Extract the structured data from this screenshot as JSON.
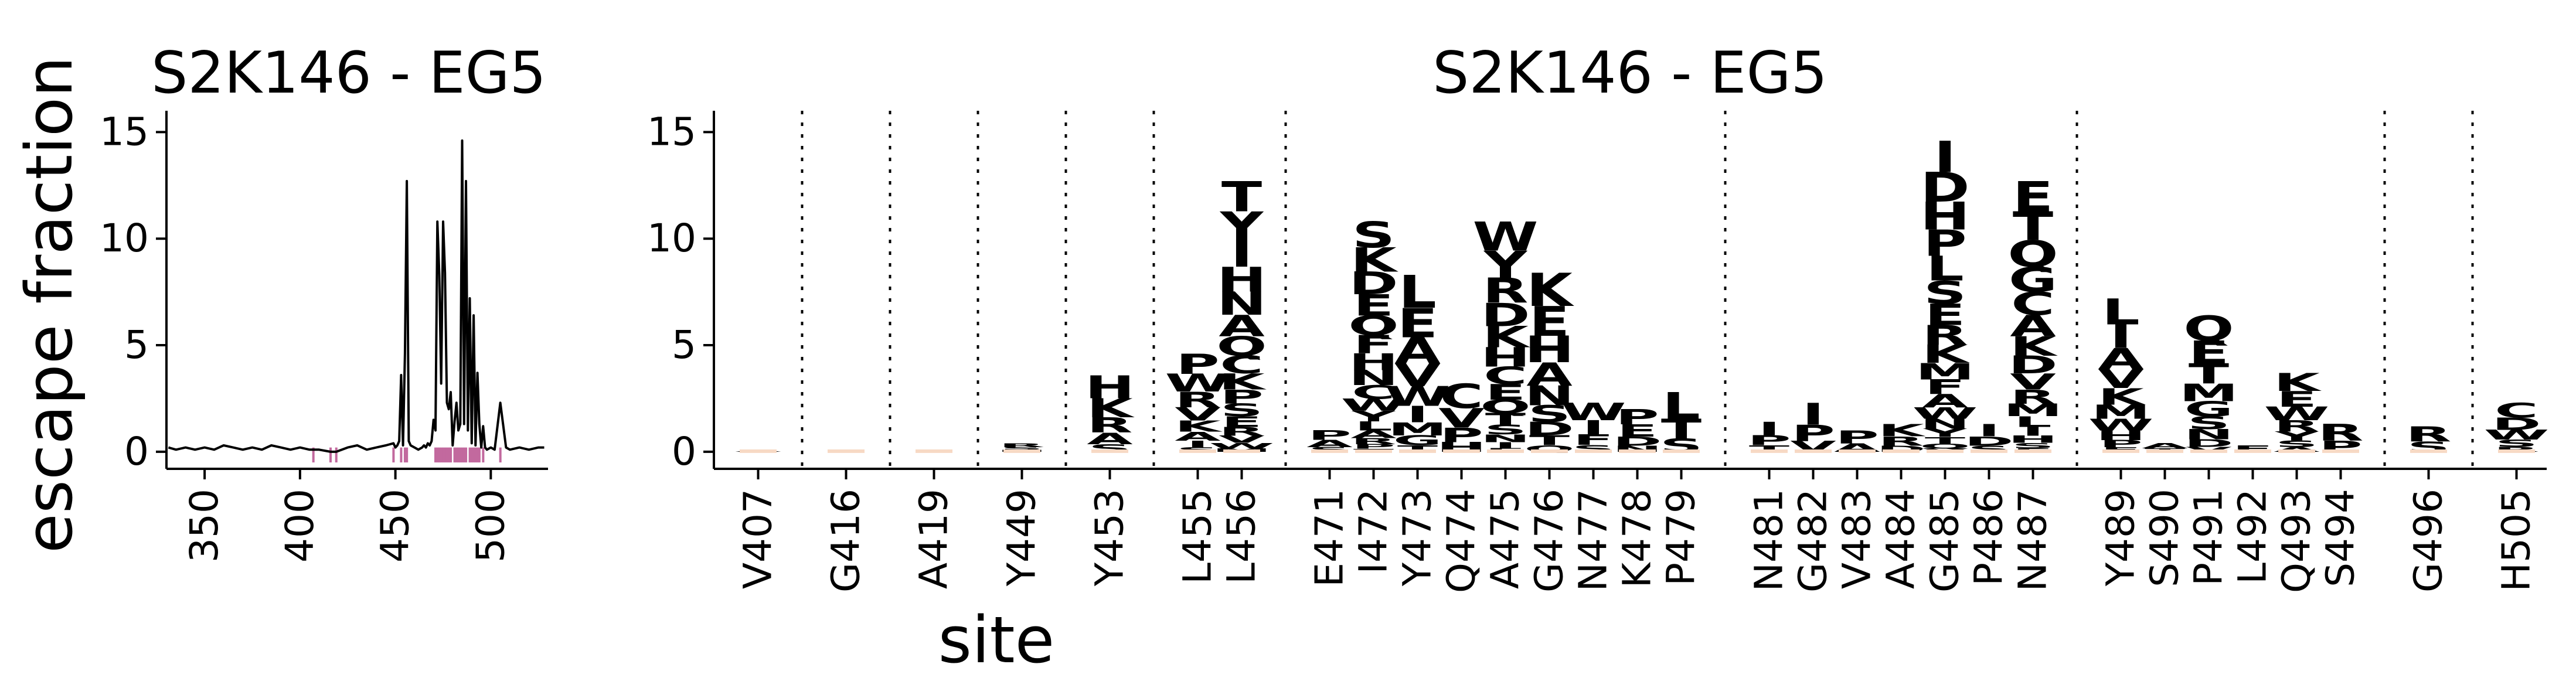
{
  "chart_data": [
    {
      "type": "line",
      "title": "S2K146 - EG5",
      "xlabel": "",
      "ylabel": "escape fraction",
      "xlim": [
        330,
        530
      ],
      "ylim": [
        -0.8,
        16
      ],
      "xticks": [
        350,
        400,
        450,
        500
      ],
      "yticks": [
        0,
        5,
        10,
        15
      ],
      "grid": false,
      "line_color": "#000000",
      "highlight_color": "#c2699e",
      "highlighted_sites": [
        407,
        416,
        419,
        449,
        453,
        455,
        456,
        471,
        472,
        473,
        474,
        475,
        476,
        477,
        478,
        479,
        481,
        482,
        483,
        484,
        485,
        486,
        487,
        489,
        490,
        491,
        492,
        493,
        494,
        496,
        505
      ],
      "series": [
        {
          "x": [
            331,
            335,
            340,
            345,
            350,
            355,
            360,
            365,
            370,
            375,
            380,
            385,
            390,
            395,
            400,
            405,
            407,
            410,
            416,
            419,
            425,
            430,
            435,
            440,
            445,
            449,
            450,
            451,
            452,
            453,
            454,
            455,
            456,
            457,
            458,
            460,
            462,
            464,
            465,
            466,
            467,
            468,
            469,
            470,
            471,
            472,
            473,
            474,
            475,
            476,
            477,
            478,
            479,
            480,
            481,
            482,
            483,
            484,
            485,
            486,
            487,
            488,
            489,
            490,
            491,
            492,
            493,
            494,
            495,
            496,
            497,
            498,
            500,
            502,
            505,
            508,
            510,
            515,
            520,
            525,
            528
          ],
          "y": [
            0.2,
            0.1,
            0.2,
            0.1,
            0.2,
            0.1,
            0.3,
            0.2,
            0.1,
            0.2,
            0.1,
            0.3,
            0.2,
            0.1,
            0.2,
            0.1,
            0.1,
            0.1,
            0.0,
            0.0,
            0.2,
            0.3,
            0.1,
            0.2,
            0.3,
            0.4,
            0.2,
            0.3,
            0.5,
            3.6,
            0.3,
            4.6,
            12.7,
            0.5,
            0.3,
            0.2,
            0.1,
            0.2,
            0.3,
            0.2,
            0.4,
            0.3,
            0.5,
            1.5,
            1.0,
            10.8,
            8.3,
            3.2,
            10.8,
            8.4,
            2.3,
            2.0,
            2.8,
            0.3,
            1.4,
            2.3,
            1.0,
            1.3,
            14.6,
            1.3,
            12.7,
            1.0,
            7.2,
            0.4,
            6.4,
            0.3,
            3.7,
            1.3,
            0.2,
            1.2,
            0.2,
            0.1,
            0.2,
            0.1,
            2.3,
            0.2,
            0.1,
            0.2,
            0.1,
            0.2,
            0.2
          ]
        }
      ]
    },
    {
      "type": "logo",
      "title": "S2K146 - EG5",
      "xlabel": "site",
      "ylabel": "",
      "ylim": [
        -0.8,
        16
      ],
      "yticks": [
        0,
        5,
        10,
        15
      ],
      "grid": false,
      "palette": {
        "dark": "#662506",
        "mid": "#cc4c02",
        "light": "#fe9929",
        "pale": "#fec44f"
      },
      "sites": [
        {
          "label": "V407",
          "value": 0.1,
          "letters": "A"
        },
        {
          "label": "G416",
          "value": 0.0,
          "letters": ""
        },
        {
          "label": "A419",
          "value": 0.0,
          "letters": ""
        },
        {
          "label": "Y449",
          "value": 0.4,
          "letters": "RSH"
        },
        {
          "label": "Y453",
          "value": 3.6,
          "letters": "HKRAS"
        },
        {
          "label": "L455",
          "value": 4.6,
          "letters": "PWRVKAIS"
        },
        {
          "label": "L456",
          "value": 12.7,
          "letters": "TYIHNAQCKPSERVWM"
        },
        {
          "label": "E471",
          "value": 1.0,
          "letters": "PAS"
        },
        {
          "label": "I472",
          "value": 10.8,
          "letters": "SKDEQFHNCWYLARPT"
        },
        {
          "label": "Y473",
          "value": 8.3,
          "letters": "LEAVWIMGT"
        },
        {
          "label": "Q474",
          "value": 3.2,
          "letters": "CVPH"
        },
        {
          "label": "A475",
          "value": 10.8,
          "letters": "WYRDKHCEQTSNIF"
        },
        {
          "label": "G476",
          "value": 8.4,
          "letters": "KEHANSDTQ"
        },
        {
          "label": "N477",
          "value": 2.3,
          "letters": "WIFS"
        },
        {
          "label": "K478",
          "value": 2.0,
          "letters": "PEDN"
        },
        {
          "label": "P479",
          "value": 2.8,
          "letters": "LTS"
        },
        {
          "label": "N481",
          "value": 1.4,
          "letters": "IPT"
        },
        {
          "label": "G482",
          "value": 2.3,
          "letters": "IPV"
        },
        {
          "label": "V483",
          "value": 1.0,
          "letters": "PA"
        },
        {
          "label": "A484",
          "value": 1.3,
          "letters": "KRD"
        },
        {
          "label": "G485",
          "value": 14.6,
          "letters": "IDHPLSERKMFAWNYTQV"
        },
        {
          "label": "P486",
          "value": 1.3,
          "letters": "IDS"
        },
        {
          "label": "N487",
          "value": 12.7,
          "letters": "ETQGCAKDVRMLIHSF"
        },
        {
          "label": "Y489",
          "value": 7.2,
          "letters": "LIAVKMWHPF"
        },
        {
          "label": "S490",
          "value": 0.4,
          "letters": "AT"
        },
        {
          "label": "P491",
          "value": 6.4,
          "letters": "QETMGSNDV"
        },
        {
          "label": "L492",
          "value": 0.3,
          "letters": "F"
        },
        {
          "label": "Q493",
          "value": 3.7,
          "letters": "KEWRYSA"
        },
        {
          "label": "S494",
          "value": 1.3,
          "letters": "RP"
        },
        {
          "label": "G496",
          "value": 1.2,
          "letters": "RS"
        },
        {
          "label": "H505",
          "value": 2.3,
          "letters": "CDWSR"
        }
      ],
      "groups": [
        [
          0
        ],
        [
          1
        ],
        [
          2
        ],
        [
          3
        ],
        [
          4
        ],
        [
          5,
          6
        ],
        [
          7,
          8,
          9,
          10,
          11,
          12,
          13,
          14,
          15
        ],
        [
          16,
          17,
          18,
          19,
          20,
          21,
          22
        ],
        [
          23,
          24,
          25,
          26,
          27,
          28
        ],
        [
          29
        ],
        [
          30
        ]
      ]
    }
  ]
}
